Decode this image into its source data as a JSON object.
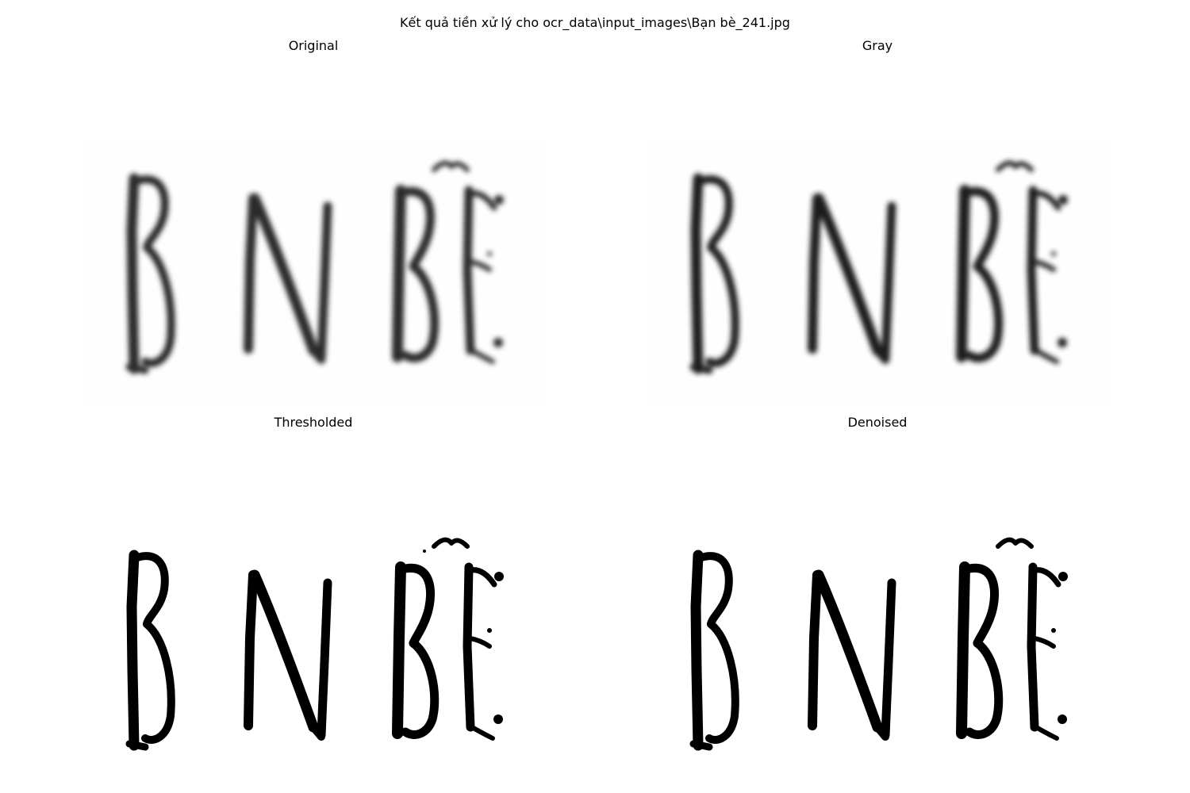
{
  "figure": {
    "suptitle": "Kết quả tiền xử lý cho ocr_data\\input_images\\Bạn bè_241.jpg"
  },
  "panels": [
    {
      "title": "Original",
      "style": "blurred-gray",
      "ink_color": "#2b2b2b",
      "background_color": "#ffffff"
    },
    {
      "title": "Gray",
      "style": "blurred-gray",
      "ink_color": "#1f1f1f",
      "background_color": "#ffffff"
    },
    {
      "title": "Thresholded",
      "style": "binary",
      "ink_color": "#000000",
      "background_color": "#ffffff"
    },
    {
      "title": "Denoised",
      "style": "binary",
      "ink_color": "#000000",
      "background_color": "#ffffff"
    }
  ]
}
